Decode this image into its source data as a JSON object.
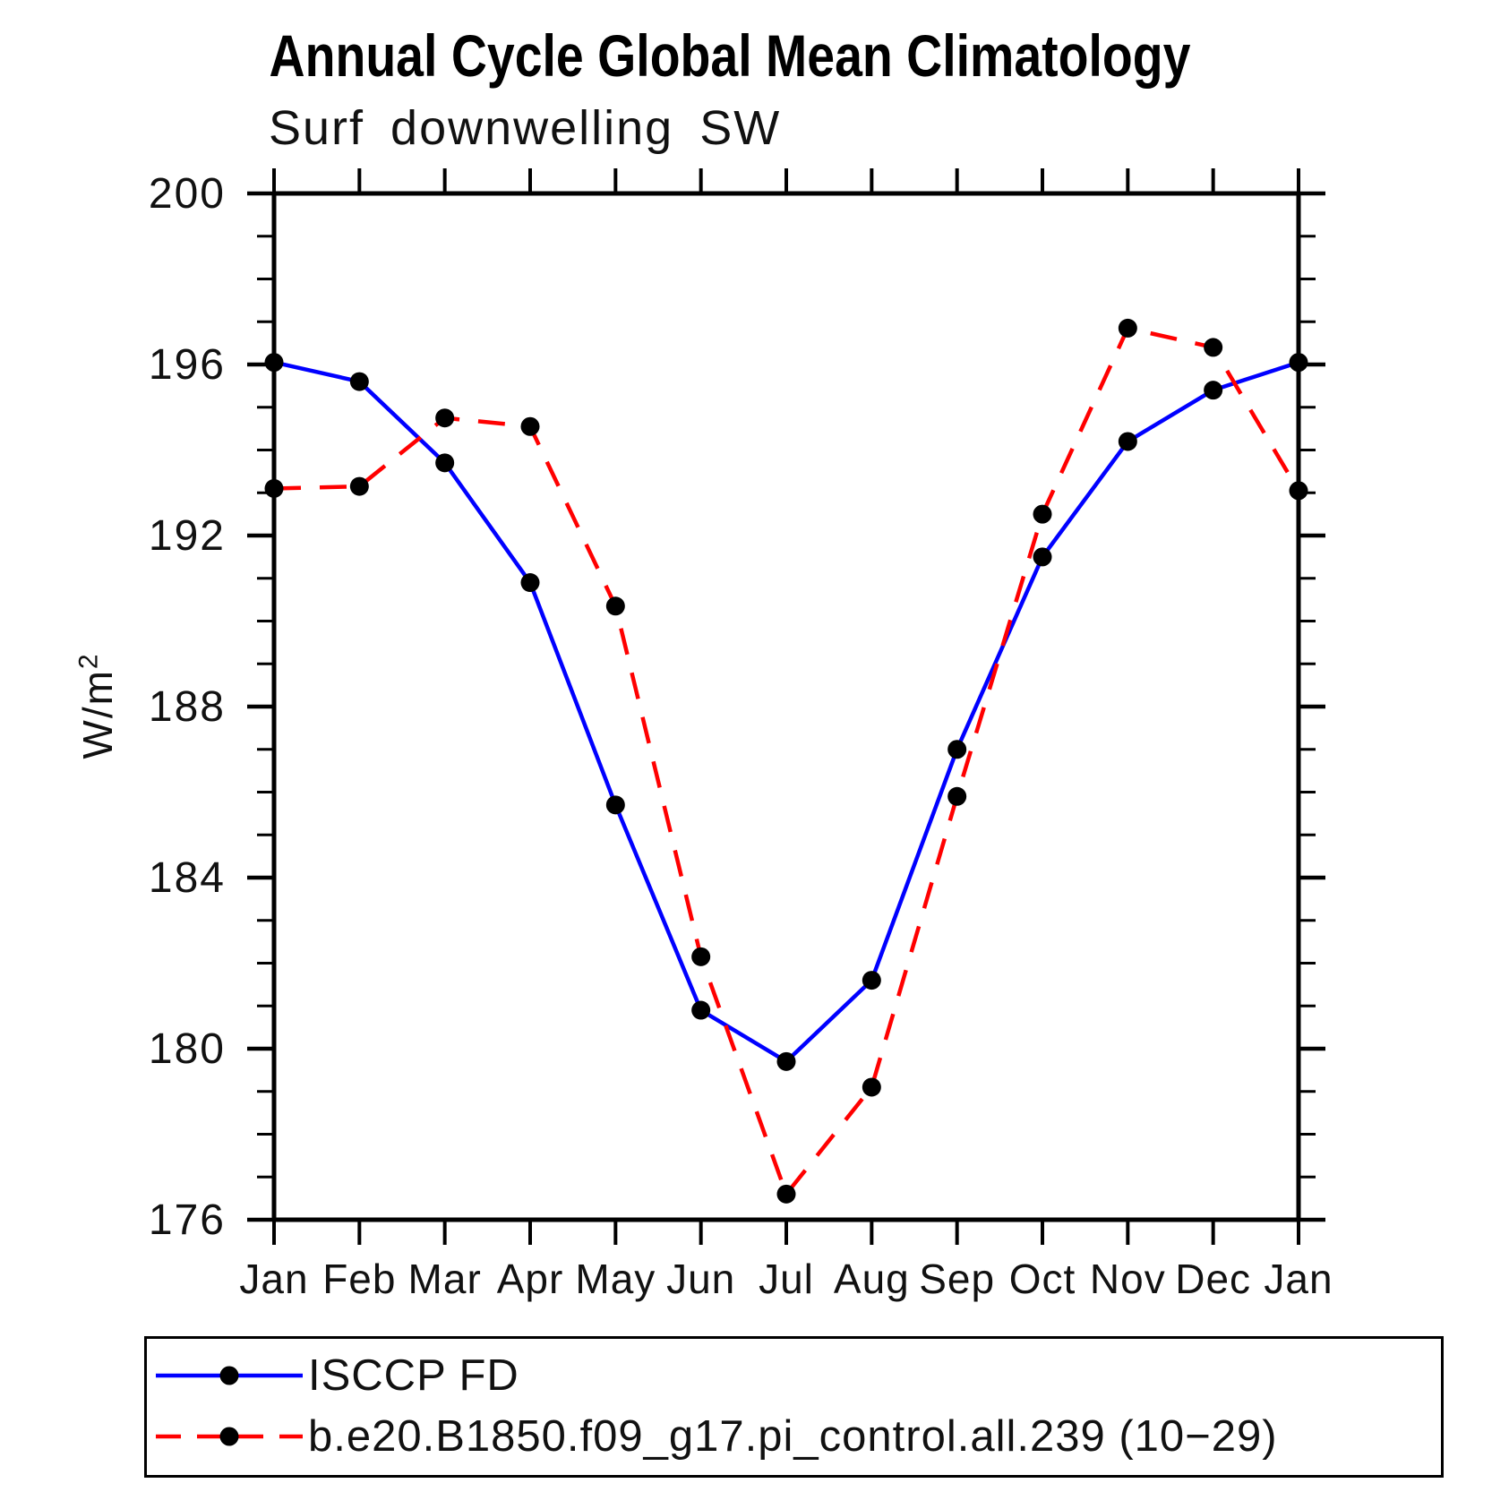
{
  "page": {
    "background": "#ffffff",
    "axis_color": "#000000"
  },
  "chart_data": {
    "type": "line",
    "title": "Annual Cycle Global Mean Climatology",
    "subtitle": "Surf downwelling SW",
    "ylabel": "W/m²",
    "ylabel_base": "W/m",
    "ylabel_exponent": "2",
    "categories": [
      "Jan",
      "Feb",
      "Mar",
      "Apr",
      "May",
      "Jun",
      "Jul",
      "Aug",
      "Sep",
      "Oct",
      "Nov",
      "Dec",
      "Jan"
    ],
    "ylim": [
      176,
      200
    ],
    "ytick_step_major": 4,
    "ytick_step_minor": 1,
    "ytick_labels": [
      "200",
      "196",
      "192",
      "188",
      "184",
      "180",
      "176"
    ],
    "grid": false,
    "legend_position": "bottom-left-box",
    "marker": "filled-circle",
    "marker_color": "#000000",
    "series": [
      {
        "name": "ISCCP FD",
        "color": "#0000ff",
        "line_style": "solid",
        "values": [
          196.05,
          195.6,
          193.7,
          190.9,
          185.7,
          180.9,
          179.7,
          181.6,
          187.0,
          191.5,
          194.2,
          195.4,
          196.05
        ]
      },
      {
        "name": "b.e20.B1850.f09_g17.pi_control.all.239 (10−29)",
        "color": "#ff0000",
        "line_style": "dashed",
        "values": [
          193.1,
          193.15,
          194.75,
          194.55,
          190.35,
          182.15,
          176.6,
          179.1,
          185.9,
          192.5,
          196.85,
          196.4,
          193.05
        ]
      }
    ]
  }
}
